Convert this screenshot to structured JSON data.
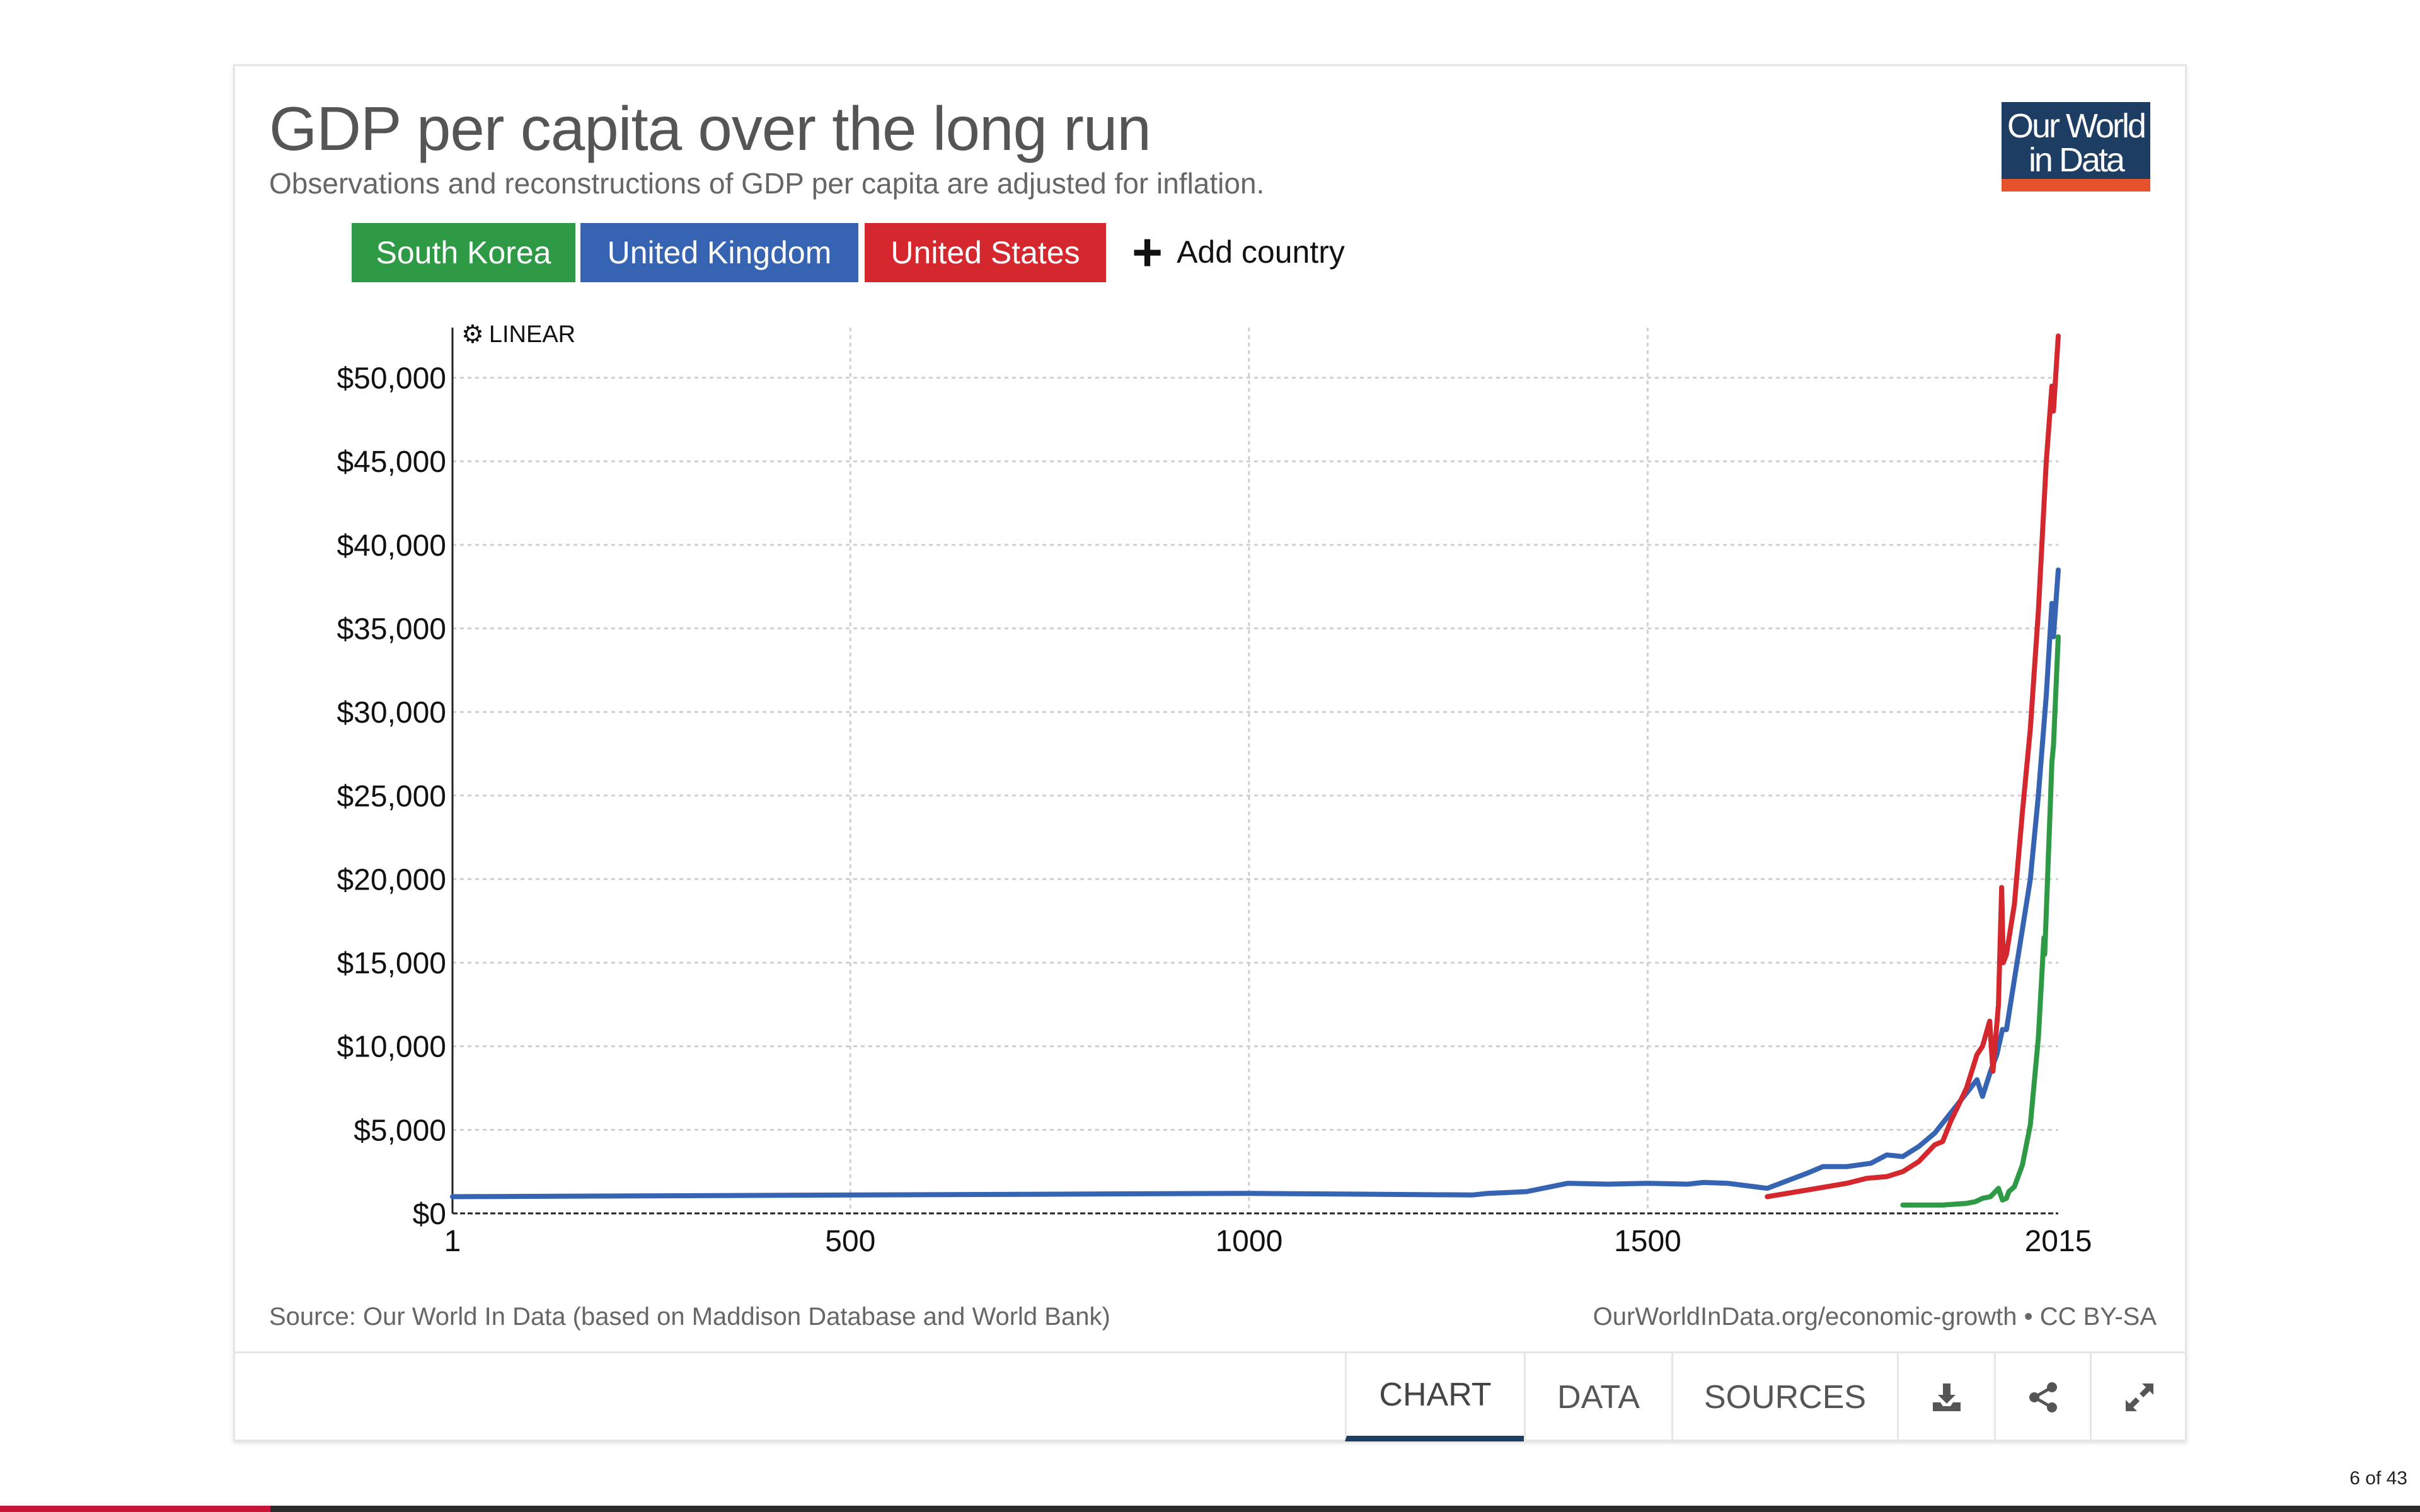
{
  "header": {
    "title": "GDP per capita over the long run",
    "subtitle": "Observations and reconstructions of GDP per capita are adjusted for inflation."
  },
  "logo": {
    "line1": "Our World",
    "line2": "in Data"
  },
  "legend": {
    "items": [
      {
        "label": "South Korea",
        "color": "#2e9a45"
      },
      {
        "label": "United Kingdom",
        "color": "#3763b3"
      },
      {
        "label": "United States",
        "color": "#d4282e"
      }
    ],
    "add_label": "Add country"
  },
  "scale_toggle": {
    "label": "LINEAR",
    "icon": "gear-icon"
  },
  "chart_data": {
    "type": "line",
    "title": "GDP per capita over the long run",
    "subtitle": "Observations and reconstructions of GDP per capita are adjusted for inflation.",
    "xlabel": "",
    "ylabel": "",
    "xlim": [
      1,
      2015
    ],
    "ylim": [
      0,
      53000
    ],
    "x_ticks": [
      1,
      500,
      1000,
      1500,
      2015
    ],
    "x_tick_labels": [
      "1",
      "500",
      "1000",
      "1500",
      "2015"
    ],
    "y_ticks": [
      0,
      5000,
      10000,
      15000,
      20000,
      25000,
      30000,
      35000,
      40000,
      45000,
      50000
    ],
    "y_tick_labels": [
      "$0",
      "$5,000",
      "$10,000",
      "$15,000",
      "$20,000",
      "$25,000",
      "$30,000",
      "$35,000",
      "$40,000",
      "$45,000",
      "$50,000"
    ],
    "grid": true,
    "legend_position": "top-left",
    "series": [
      {
        "name": "United Kingdom",
        "color": "#3763b3",
        "points": [
          [
            1,
            1000
          ],
          [
            1000,
            1200
          ],
          [
            1280,
            1100
          ],
          [
            1300,
            1200
          ],
          [
            1348,
            1300
          ],
          [
            1400,
            1800
          ],
          [
            1450,
            1750
          ],
          [
            1500,
            1800
          ],
          [
            1550,
            1750
          ],
          [
            1570,
            1850
          ],
          [
            1600,
            1800
          ],
          [
            1650,
            1500
          ],
          [
            1700,
            2400
          ],
          [
            1720,
            2800
          ],
          [
            1750,
            2800
          ],
          [
            1780,
            3000
          ],
          [
            1800,
            3500
          ],
          [
            1820,
            3400
          ],
          [
            1840,
            4000
          ],
          [
            1860,
            4800
          ],
          [
            1880,
            6000
          ],
          [
            1900,
            7200
          ],
          [
            1913,
            8000
          ],
          [
            1920,
            7000
          ],
          [
            1930,
            8500
          ],
          [
            1938,
            9500
          ],
          [
            1945,
            11000
          ],
          [
            1950,
            11000
          ],
          [
            1960,
            14000
          ],
          [
            1970,
            17000
          ],
          [
            1980,
            20000
          ],
          [
            1990,
            25000
          ],
          [
            2000,
            31000
          ],
          [
            2007,
            36500
          ],
          [
            2009,
            34500
          ],
          [
            2015,
            38500
          ]
        ]
      },
      {
        "name": "United States",
        "color": "#d4282e",
        "points": [
          [
            1650,
            1000
          ],
          [
            1700,
            1400
          ],
          [
            1750,
            1800
          ],
          [
            1775,
            2100
          ],
          [
            1800,
            2200
          ],
          [
            1820,
            2500
          ],
          [
            1840,
            3100
          ],
          [
            1860,
            4100
          ],
          [
            1870,
            4300
          ],
          [
            1880,
            5500
          ],
          [
            1890,
            6500
          ],
          [
            1900,
            7500
          ],
          [
            1913,
            9500
          ],
          [
            1920,
            10000
          ],
          [
            1929,
            11500
          ],
          [
            1933,
            8500
          ],
          [
            1940,
            12500
          ],
          [
            1944,
            19500
          ],
          [
            1946,
            15000
          ],
          [
            1950,
            15500
          ],
          [
            1960,
            18500
          ],
          [
            1970,
            24000
          ],
          [
            1980,
            29000
          ],
          [
            1990,
            36000
          ],
          [
            2000,
            45000
          ],
          [
            2007,
            49500
          ],
          [
            2009,
            48000
          ],
          [
            2015,
            52500
          ]
        ]
      },
      {
        "name": "South Korea",
        "color": "#2e9a45",
        "points": [
          [
            1820,
            500
          ],
          [
            1870,
            500
          ],
          [
            1900,
            600
          ],
          [
            1911,
            700
          ],
          [
            1920,
            900
          ],
          [
            1930,
            1000
          ],
          [
            1940,
            1500
          ],
          [
            1945,
            800
          ],
          [
            1950,
            900
          ],
          [
            1953,
            1300
          ],
          [
            1960,
            1600
          ],
          [
            1970,
            2900
          ],
          [
            1980,
            5300
          ],
          [
            1990,
            10500
          ],
          [
            1997,
            16500
          ],
          [
            1998,
            15500
          ],
          [
            2000,
            18000
          ],
          [
            2007,
            27000
          ],
          [
            2009,
            28000
          ],
          [
            2015,
            34500
          ]
        ]
      }
    ]
  },
  "footer": {
    "source": "Source: Our World In Data (based on Maddison Database and World Bank)",
    "credit": "OurWorldInData.org/economic-growth • CC BY-SA"
  },
  "tabs": [
    {
      "label": "CHART"
    },
    {
      "label": "DATA"
    },
    {
      "label": "SOURCES"
    }
  ],
  "actions": {
    "download_icon": "download-icon",
    "share_icon": "share-icon",
    "expand_icon": "expand-icon"
  },
  "pager": {
    "text": "6 of 43",
    "current": 6,
    "total": 43
  }
}
